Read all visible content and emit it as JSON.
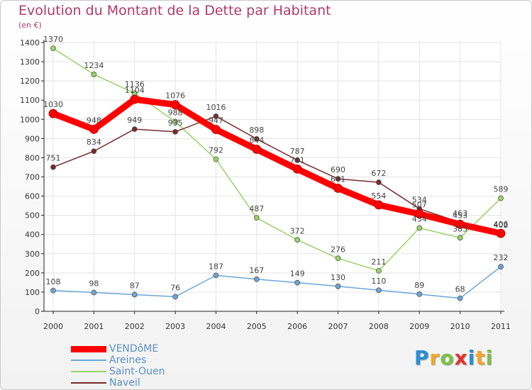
{
  "chart_data": {
    "type": "line",
    "title": "Evolution du Montant de la Dette par Habitant",
    "subtitle": "(en €)",
    "categories": [
      "2000",
      "2001",
      "2002",
      "2003",
      "2004",
      "2005",
      "2006",
      "2007",
      "2008",
      "2009",
      "2010",
      "2011"
    ],
    "yticks": [
      0,
      100,
      200,
      300,
      400,
      500,
      600,
      700,
      800,
      900,
      1000,
      1100,
      1200,
      1300,
      1400
    ],
    "ylim": [
      0,
      1400
    ],
    "grid": true,
    "legend_position": "bottom-left",
    "series": [
      {
        "name": "VENDôME",
        "color": "#ff0000",
        "values": [
          1030,
          948,
          1104,
          1076,
          947,
          844,
          741,
          641,
          554,
          507,
          453,
          406
        ],
        "labels": [
          "1030",
          "948",
          "1104",
          "1076",
          "947",
          "844",
          "741",
          "641",
          "554",
          "507",
          "453",
          "406"
        ]
      },
      {
        "name": "Areines",
        "color": "#6aa6d6",
        "values": [
          108,
          98,
          87,
          76,
          187,
          167,
          149,
          130,
          110,
          89,
          68,
          232
        ],
        "labels": [
          "108",
          "98",
          "87",
          "76",
          "187",
          "167",
          "149",
          "130",
          "110",
          "89",
          "68",
          "232"
        ]
      },
      {
        "name": "Saint-Ouen",
        "color": "#96d464",
        "values": [
          1370,
          1234,
          1136,
          988,
          792,
          487,
          372,
          276,
          211,
          434,
          383,
          589
        ],
        "labels": [
          "1370",
          "1234",
          "1136",
          "988",
          "792",
          "487",
          "372",
          "276",
          "211",
          "434",
          "383",
          "589"
        ]
      },
      {
        "name": "Naveil",
        "color": "#7a2a2a",
        "values": [
          751,
          834,
          949,
          935,
          1016,
          898,
          787,
          690,
          672,
          534,
          463,
          402
        ],
        "labels": [
          "751",
          "834",
          "949",
          "935",
          "1016",
          "898",
          "787",
          "690",
          "672",
          "534",
          "463",
          "402"
        ]
      }
    ]
  },
  "brand": {
    "letters": [
      "P",
      "r",
      "o",
      "x",
      "i",
      "t",
      "i"
    ],
    "colors": [
      "#2a8fd6",
      "#f5a623",
      "#7ac143",
      "#e5322d",
      "#2a8fd6",
      "#f5a623",
      "#7ac143"
    ]
  }
}
